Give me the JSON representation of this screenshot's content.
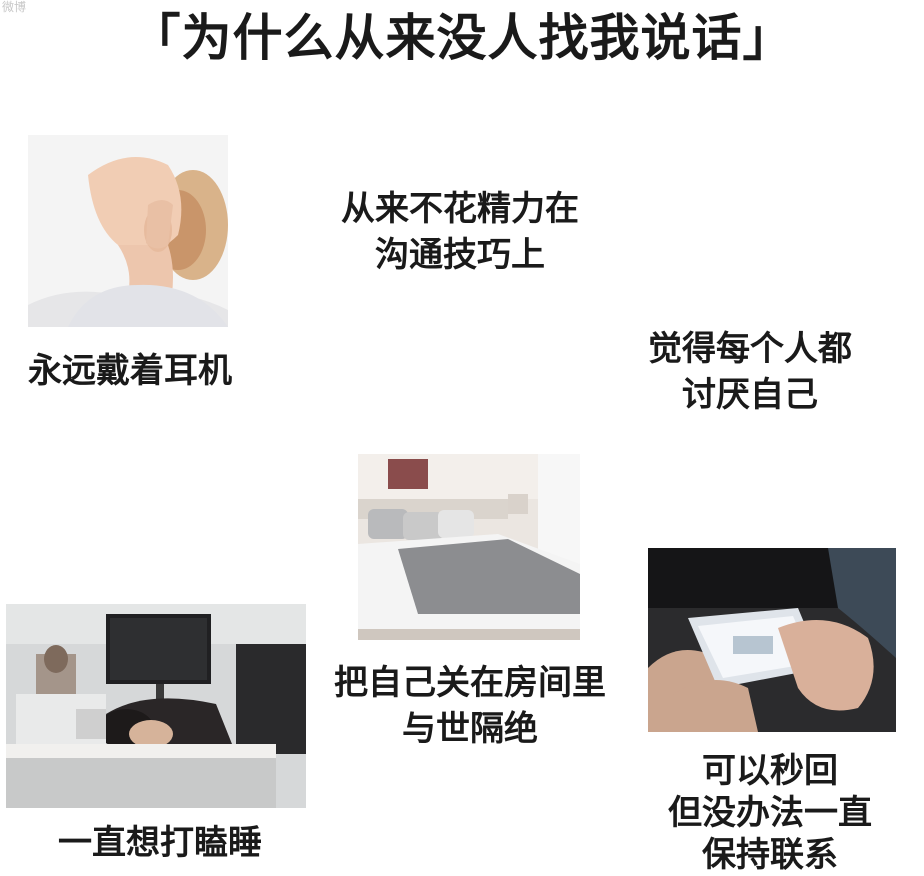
{
  "watermark": "微博",
  "title": "「为什么从来没人找我说话」",
  "items": {
    "headphones": {
      "caption": "永远戴着耳机"
    },
    "communication": {
      "line1": "从来不花精力在",
      "line2": "沟通技巧上"
    },
    "everyone_dislikes": {
      "line1": "觉得每个人都",
      "line2": "讨厌自己"
    },
    "bedroom": {
      "line1": "把自己关在房间里",
      "line2": "与世隔绝"
    },
    "sleepy": {
      "caption": "一直想打瞌睡"
    },
    "phone": {
      "line1": "可以秒回",
      "line2": "但没办法一直",
      "line3": "保持联系"
    }
  }
}
